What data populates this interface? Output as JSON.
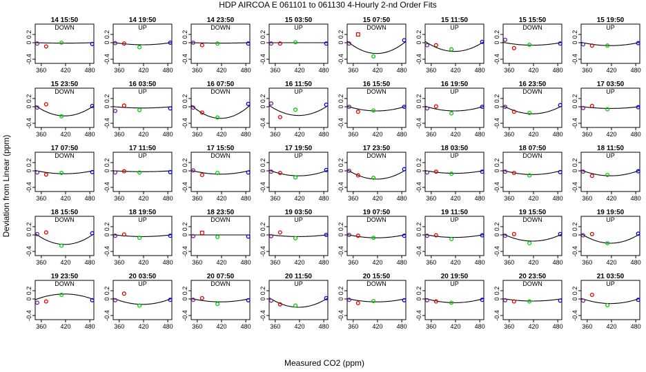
{
  "chart_data": {
    "type": "scatter",
    "title": "HDP   AIRCOA E   061101 to 061130   4-Hourly 2-nd Order Fits",
    "xlabel": "Measured CO2 (ppm)",
    "ylabel": "Deviation from Linear (ppm)",
    "xlim": [
      345,
      490
    ],
    "ylim": [
      -0.5,
      0.45
    ],
    "xticks": [
      360,
      420,
      480
    ],
    "yticks": [
      0.2,
      0,
      -0.4
    ],
    "ytick_labels": [
      "0.2",
      "0",
      "-0.4"
    ],
    "x_standards": [
      350,
      372,
      410,
      486
    ],
    "point_colors": [
      "#6a1f8f",
      "#dd0000",
      "#00cc00",
      "#0000dd"
    ],
    "panels": [
      {
        "time": "14 15:50",
        "dir": "DOWN",
        "a": -0.01,
        "pts": [
          -0.02,
          -0.09,
          0.0,
          -0.03
        ],
        "sq": false
      },
      {
        "time": "14 19:50",
        "dir": "UP",
        "a": -0.05,
        "pts": [
          -0.01,
          -0.02,
          -0.11,
          0.0
        ],
        "sq": false
      },
      {
        "time": "14 23:50",
        "dir": "DOWN",
        "a": -0.01,
        "pts": [
          0.0,
          -0.06,
          -0.02,
          -0.02
        ],
        "sq": false
      },
      {
        "time": "15 03:50",
        "dir": "UP",
        "a": 0.0,
        "pts": [
          -0.02,
          -0.02,
          0.01,
          -0.02
        ],
        "sq": false
      },
      {
        "time": "15 07:50",
        "dir": "DOWN",
        "a": -0.26,
        "pts": [
          -0.02,
          0.2,
          -0.33,
          0.06
        ],
        "sq": true
      },
      {
        "time": "15 11:50",
        "dir": "UP",
        "a": -0.21,
        "pts": [
          -0.06,
          -0.06,
          -0.16,
          0.02
        ],
        "sq": false
      },
      {
        "time": "15 15:50",
        "dir": "DOWN",
        "a": -0.06,
        "pts": [
          0.07,
          -0.13,
          -0.05,
          -0.02
        ],
        "sq": false
      },
      {
        "time": "15 19:50",
        "dir": "UP",
        "a": -0.07,
        "pts": [
          -0.04,
          -0.07,
          -0.07,
          -0.01
        ],
        "sq": false
      },
      {
        "time": "15 23:50",
        "dir": "DOWN",
        "a": -0.22,
        "pts": [
          -0.02,
          0.06,
          -0.23,
          0.02
        ],
        "sq": false
      },
      {
        "time": "16 03:50",
        "dir": "UP",
        "a": -0.03,
        "pts": [
          -0.1,
          0.03,
          -0.08,
          -0.04
        ],
        "sq": false
      },
      {
        "time": "16 07:50",
        "dir": "DOWN",
        "a": -0.28,
        "pts": [
          -0.02,
          -0.14,
          -0.26,
          0.07
        ],
        "sq": false
      },
      {
        "time": "16 11:50",
        "dir": "UP",
        "a": -0.21,
        "pts": [
          0.08,
          -0.25,
          -0.07,
          0.05
        ],
        "sq": false
      },
      {
        "time": "16 15:50",
        "dir": "DOWN",
        "a": -0.1,
        "pts": [
          0.0,
          -0.12,
          -0.09,
          0.0
        ],
        "sq": false
      },
      {
        "time": "16 19:50",
        "dir": "UP",
        "a": -0.1,
        "pts": [
          -0.04,
          0.01,
          -0.16,
          0.0
        ],
        "sq": false
      },
      {
        "time": "16 23:50",
        "dir": "DOWN",
        "a": -0.17,
        "pts": [
          0.0,
          -0.12,
          -0.15,
          0.04
        ],
        "sq": false
      },
      {
        "time": "17 03:50",
        "dir": "UP",
        "a": -0.04,
        "pts": [
          -0.03,
          0.02,
          -0.06,
          -0.01
        ],
        "sq": false
      },
      {
        "time": "17 07:50",
        "dir": "DOWN",
        "a": -0.07,
        "pts": [
          -0.04,
          -0.09,
          -0.05,
          -0.03
        ],
        "sq": false
      },
      {
        "time": "17 11:50",
        "dir": "UP",
        "a": -0.02,
        "pts": [
          -0.04,
          -0.01,
          -0.04,
          -0.03
        ],
        "sq": false
      },
      {
        "time": "17 15:50",
        "dir": "DOWN",
        "a": -0.08,
        "pts": [
          0.01,
          -0.1,
          -0.05,
          -0.04
        ],
        "sq": false
      },
      {
        "time": "17 19:50",
        "dir": "UP",
        "a": -0.12,
        "pts": [
          -0.02,
          -0.05,
          -0.16,
          0.02
        ],
        "sq": false
      },
      {
        "time": "17 23:50",
        "dir": "DOWN",
        "a": -0.2,
        "pts": [
          0.0,
          -0.11,
          -0.17,
          0.04
        ],
        "sq": false
      },
      {
        "time": "18 03:50",
        "dir": "UP",
        "a": -0.06,
        "pts": [
          -0.04,
          -0.02,
          -0.07,
          -0.02
        ],
        "sq": false
      },
      {
        "time": "18 07:50",
        "dir": "DOWN",
        "a": -0.09,
        "pts": [
          -0.02,
          -0.05,
          -0.11,
          -0.03
        ],
        "sq": false
      },
      {
        "time": "18 11:50",
        "dir": "UP",
        "a": -0.12,
        "pts": [
          -0.02,
          -0.12,
          -0.1,
          -0.01
        ],
        "sq": false
      },
      {
        "time": "18 15:50",
        "dir": "DOWN",
        "a": -0.23,
        "pts": [
          0.02,
          0.06,
          -0.26,
          0.04
        ],
        "sq": false
      },
      {
        "time": "18 19:50",
        "dir": "UP",
        "a": -0.04,
        "pts": [
          -0.02,
          0.01,
          -0.07,
          -0.02
        ],
        "sq": false
      },
      {
        "time": "18 23:50",
        "dir": "DOWN",
        "a": 0.0,
        "pts": [
          -0.03,
          0.05,
          -0.05,
          -0.04
        ],
        "sq": true
      },
      {
        "time": "19 03:50",
        "dir": "UP",
        "a": -0.04,
        "pts": [
          -0.03,
          0.06,
          -0.08,
          0.0
        ],
        "sq": false
      },
      {
        "time": "19 07:50",
        "dir": "DOWN",
        "a": -0.07,
        "pts": [
          0.0,
          -0.02,
          -0.07,
          -0.02
        ],
        "sq": false
      },
      {
        "time": "19 11:50",
        "dir": "UP",
        "a": -0.06,
        "pts": [
          -0.02,
          -0.01,
          -0.1,
          -0.01
        ],
        "sq": false
      },
      {
        "time": "19 15:50",
        "dir": "DOWN",
        "a": -0.15,
        "pts": [
          -0.02,
          0.02,
          -0.2,
          0.02
        ],
        "sq": false
      },
      {
        "time": "19 19:50",
        "dir": "UP",
        "a": -0.2,
        "pts": [
          -0.01,
          0.02,
          -0.2,
          0.03
        ],
        "sq": false
      },
      {
        "time": "19 23:50",
        "dir": "DOWN",
        "a": 0.12,
        "pts": [
          -0.09,
          -0.06,
          0.1,
          -0.03
        ],
        "sq": false
      },
      {
        "time": "20 03:50",
        "dir": "UP",
        "a": -0.13,
        "pts": [
          -0.03,
          0.13,
          -0.16,
          -0.02
        ],
        "sq": false
      },
      {
        "time": "20 07:50",
        "dir": "DOWN",
        "a": -0.07,
        "pts": [
          -0.02,
          0.02,
          -0.12,
          -0.03
        ],
        "sq": false
      },
      {
        "time": "20 11:50",
        "dir": "UP",
        "a": -0.2,
        "pts": [
          -0.04,
          -0.13,
          -0.16,
          0.02
        ],
        "sq": false
      },
      {
        "time": "20 15:50",
        "dir": "DOWN",
        "a": -0.07,
        "pts": [
          -0.02,
          -0.1,
          -0.05,
          -0.03
        ],
        "sq": false
      },
      {
        "time": "20 19:50",
        "dir": "UP",
        "a": -0.09,
        "pts": [
          -0.03,
          -0.06,
          -0.09,
          -0.02
        ],
        "sq": false
      },
      {
        "time": "20 23:50",
        "dir": "DOWN",
        "a": -0.05,
        "pts": [
          -0.03,
          -0.06,
          -0.06,
          -0.04
        ],
        "sq": false
      },
      {
        "time": "21 03:50",
        "dir": "UP",
        "a": -0.11,
        "pts": [
          -0.04,
          0.1,
          -0.15,
          -0.02
        ],
        "sq": false
      }
    ]
  }
}
